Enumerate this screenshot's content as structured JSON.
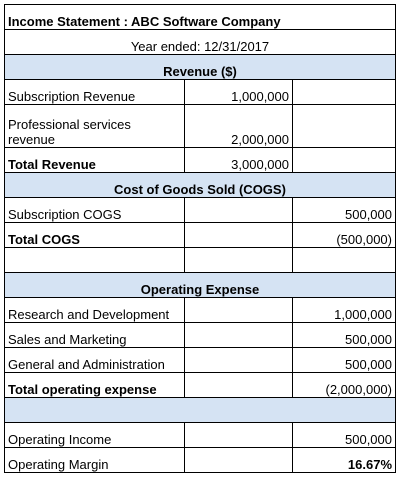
{
  "title": "Income Statement : ABC Software Company",
  "period": "Year ended: 12/31/2017",
  "revenue": {
    "header": "Revenue ($)",
    "subscription_label": "Subscription Revenue",
    "subscription_value": "1,000,000",
    "professional_label_line1": "Professional services",
    "professional_label_line2": "revenue",
    "professional_value": "2,000,000",
    "total_label": "Total Revenue",
    "total_value": "3,000,000"
  },
  "cogs": {
    "header": "Cost of Goods Sold (COGS)",
    "subscription_label": "Subscription COGS",
    "subscription_value": "500,000",
    "total_label": "Total COGS",
    "total_value": "(500,000)"
  },
  "opex": {
    "header": "Operating Expense",
    "rd_label": "Research and Development",
    "rd_value": "1,000,000",
    "sm_label": "Sales and Marketing",
    "sm_value": "500,000",
    "ga_label": "General and Administration",
    "ga_value": "500,000",
    "total_label": "Total operating expense",
    "total_value": "(2,000,000)"
  },
  "results": {
    "income_label": "Operating Income",
    "income_value": "500,000",
    "margin_label": "Operating Margin",
    "margin_value": "16.67%"
  }
}
